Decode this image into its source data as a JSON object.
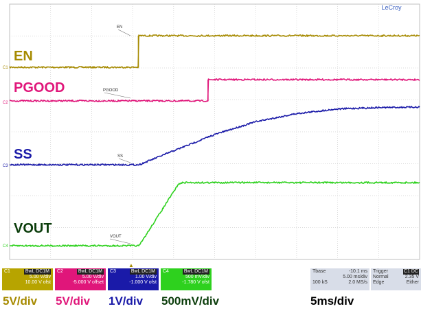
{
  "brand": "LeCroy",
  "colors": {
    "en": "#a68a00",
    "pgood": "#e0167a",
    "ss": "#1a1aa8",
    "vout": "#2ed11e",
    "grid": "#cfcfcf",
    "frame": "#bfbfbf"
  },
  "channel_labels": {
    "en": "EN",
    "pgood": "PGOOD",
    "ss": "SS",
    "vout": "VOUT"
  },
  "marker_labels": {
    "en": "EN",
    "pgood": "PGOOD",
    "ss": "SS",
    "vout": "VOUT"
  },
  "ground_markers": [
    "C1",
    "C2",
    "C3",
    "C4"
  ],
  "trigger_marker": "▲",
  "channel_info": [
    {
      "id": "C1",
      "tag": "BwL DC1M",
      "scale": "5.00 V/div",
      "offset": "10.00 V ofst"
    },
    {
      "id": "C2",
      "tag": "BwL DC1M",
      "scale": "5.00 V/div",
      "offset": "-5.000 V offset"
    },
    {
      "id": "C3",
      "tag": "BwL DC1M",
      "scale": "1.00 V/div",
      "offset": "-1.000 V ofst"
    },
    {
      "id": "C4",
      "tag": "BwL DC1M",
      "scale": "500 mV/div",
      "offset": "-1.780 V ofst"
    }
  ],
  "timebase": {
    "label": "Tbase",
    "delay": "-10.1 ms",
    "scale": "5.00 ms/div",
    "samples": "100 kS",
    "rate": "2.0 MS/s"
  },
  "trigger": {
    "label": "Trigger",
    "source": "C1 DC",
    "mode": "Normal",
    "level": "2.35 V",
    "type": "Edge",
    "slope": "Either"
  },
  "captions": {
    "c1": "5V/div",
    "c2": "5V/div",
    "c3": "1V/div",
    "c4": "500mV/div",
    "time": "5ms/div"
  },
  "chart_data": {
    "type": "line",
    "time_unit": "ms",
    "time_per_div": 5,
    "divisions_x": 10,
    "divisions_y": 8,
    "series": [
      {
        "name": "EN",
        "unit": "V/div",
        "x": [
          0,
          15.7,
          15.7,
          50
        ],
        "y": [
          0,
          0,
          5.2,
          5.2
        ]
      },
      {
        "name": "PGOOD",
        "unit": "V/div",
        "x": [
          0,
          24.2,
          24.2,
          50
        ],
        "y": [
          0,
          0,
          5.1,
          5.1
        ]
      },
      {
        "name": "SS",
        "unit": "V/div",
        "x": [
          0,
          15.8,
          20,
          25,
          30,
          35,
          40,
          45,
          50
        ],
        "y": [
          0,
          0,
          0.6,
          1.3,
          1.85,
          2.2,
          2.4,
          2.46,
          2.48
        ]
      },
      {
        "name": "VOUT",
        "unit": "mV/div",
        "x": [
          0,
          15.8,
          20.6,
          21.2,
          50
        ],
        "y": [
          0,
          0,
          1.32,
          1.35,
          1.35
        ]
      }
    ]
  }
}
